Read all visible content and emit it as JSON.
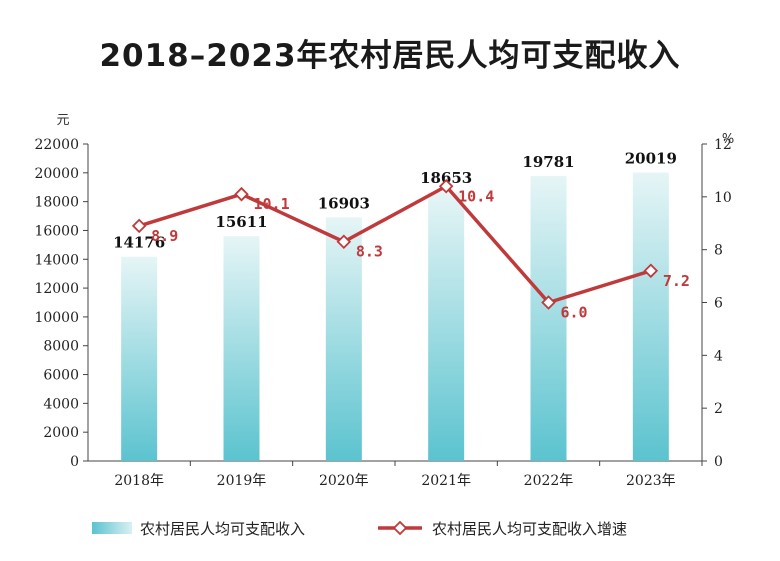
{
  "chart_data": {
    "type": "bar",
    "title": "2018–2023年农村居民人均可支配收入",
    "categories": [
      "2018年",
      "2019年",
      "2020年",
      "2021年",
      "2022年",
      "2023年"
    ],
    "series": [
      {
        "name": "农村居民人均可支配收入",
        "type": "bar",
        "axis": "left",
        "values": [
          14176,
          15611,
          16903,
          18653,
          19781,
          20019
        ]
      },
      {
        "name": "农村居民人均可支配收入增速",
        "type": "line",
        "axis": "right",
        "values": [
          8.9,
          10.1,
          8.3,
          10.4,
          6.0,
          7.2
        ],
        "labels": [
          "8.9",
          "10.1",
          "8.3",
          "10.4",
          "6.0",
          "7.2"
        ]
      }
    ],
    "yleft": {
      "unit": "元",
      "range": [
        0,
        22000
      ],
      "ticks": [
        0,
        2000,
        4000,
        6000,
        8000,
        10000,
        12000,
        14000,
        16000,
        18000,
        20000,
        22000
      ]
    },
    "yright": {
      "unit": "%",
      "range": [
        0,
        12
      ],
      "ticks": [
        0,
        2,
        4,
        6,
        8,
        10,
        12
      ]
    },
    "legend_position": "bottom",
    "colors": {
      "bar_top": "#e6f5f6",
      "bar_bottom": "#5bc3cf",
      "line": "#c0393b",
      "marker_fill": "#ffffff"
    }
  }
}
